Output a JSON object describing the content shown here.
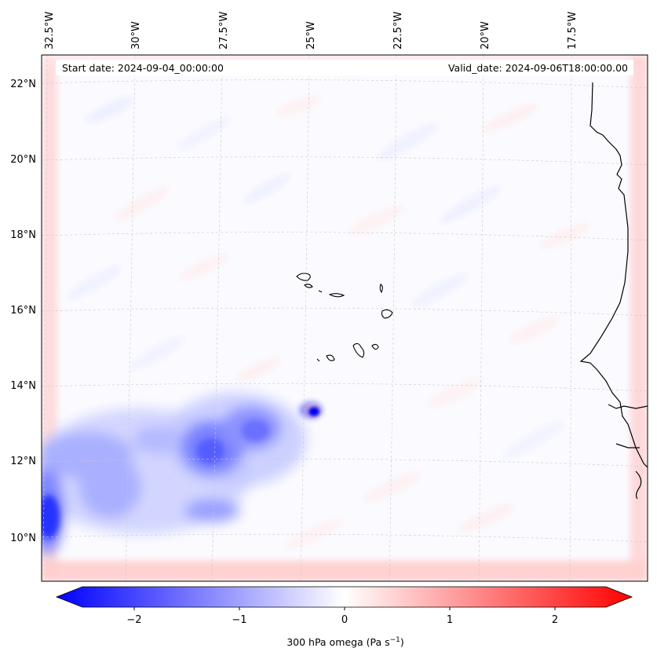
{
  "map": {
    "start_date": "Start date: 2024-09-04_00:00:00",
    "valid_date": "Valid_date: 2024-09-06T18:00:00.00",
    "lon_labels": [
      "32.5°W",
      "30°W",
      "27.5°W",
      "25°W",
      "22.5°W",
      "20°W",
      "17.5°W"
    ],
    "lat_labels": [
      "22°N",
      "20°N",
      "18°N",
      "16°N",
      "14°N",
      "12°N",
      "10°N"
    ],
    "colors": {
      "negative": "#0000ff",
      "zero": "#ffffff",
      "positive": "#ff0000",
      "coastline": "#000000",
      "grid": "#cccccc"
    }
  },
  "colorbar": {
    "title": "300 hPa omega (Pa s",
    "title_sup": "−1",
    "title_end": ")",
    "ticks": [
      "−2",
      "−1",
      "0",
      "1",
      "2"
    ],
    "range": [
      -2.7,
      2.7
    ]
  }
}
